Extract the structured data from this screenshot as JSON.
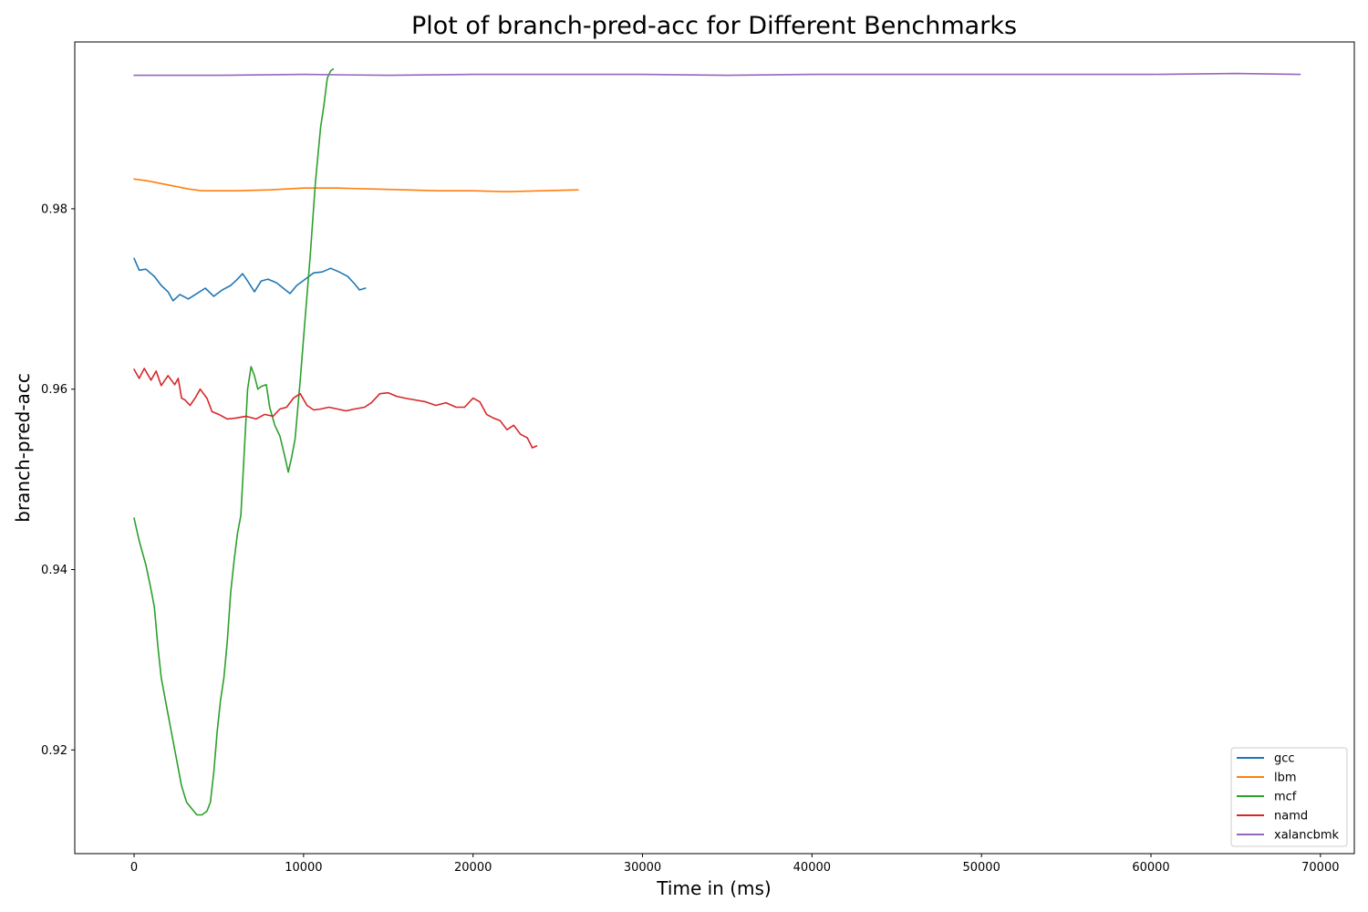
{
  "chart_data": {
    "type": "line",
    "title": "Plot of branch-pred-acc for Different Benchmarks",
    "xlabel": "Time in (ms)",
    "ylabel": "branch-pred-acc",
    "xlim": [
      -3500,
      72000
    ],
    "ylim": [
      0.9085,
      0.9985
    ],
    "x_ticks": [
      0,
      10000,
      20000,
      30000,
      40000,
      50000,
      60000,
      70000
    ],
    "x_tick_labels": [
      "0",
      "10000",
      "20000",
      "30000",
      "40000",
      "50000",
      "60000",
      "70000"
    ],
    "y_ticks": [
      0.92,
      0.94,
      0.96,
      0.98
    ],
    "y_tick_labels": [
      "0.92",
      "0.94",
      "0.96",
      "0.98"
    ],
    "grid": false,
    "legend_position": "lower-right",
    "series": [
      {
        "name": "gcc",
        "color": "#1f77b4",
        "points": [
          [
            0,
            0.9745
          ],
          [
            300,
            0.9732
          ],
          [
            700,
            0.9733
          ],
          [
            1200,
            0.9725
          ],
          [
            1600,
            0.9715
          ],
          [
            2000,
            0.9708
          ],
          [
            2300,
            0.9698
          ],
          [
            2700,
            0.9705
          ],
          [
            3200,
            0.97
          ],
          [
            3700,
            0.9706
          ],
          [
            4200,
            0.9712
          ],
          [
            4700,
            0.9703
          ],
          [
            5200,
            0.971
          ],
          [
            5700,
            0.9715
          ],
          [
            6100,
            0.9722
          ],
          [
            6400,
            0.9728
          ],
          [
            6700,
            0.972
          ],
          [
            7100,
            0.9708
          ],
          [
            7500,
            0.972
          ],
          [
            7900,
            0.9722
          ],
          [
            8400,
            0.9718
          ],
          [
            8800,
            0.9712
          ],
          [
            9200,
            0.9706
          ],
          [
            9600,
            0.9715
          ],
          [
            10100,
            0.9722
          ],
          [
            10600,
            0.9729
          ],
          [
            11100,
            0.973
          ],
          [
            11600,
            0.9734
          ],
          [
            12100,
            0.973
          ],
          [
            12600,
            0.9725
          ],
          [
            13000,
            0.9717
          ],
          [
            13300,
            0.971
          ],
          [
            13650,
            0.9712
          ]
        ]
      },
      {
        "name": "lbm",
        "color": "#ff7f0e",
        "points": [
          [
            0,
            0.9833
          ],
          [
            800,
            0.9831
          ],
          [
            1600,
            0.9828
          ],
          [
            2400,
            0.9825
          ],
          [
            3200,
            0.9822
          ],
          [
            4000,
            0.982
          ],
          [
            6000,
            0.982
          ],
          [
            8000,
            0.9821
          ],
          [
            10000,
            0.9823
          ],
          [
            12000,
            0.9823
          ],
          [
            14000,
            0.9822
          ],
          [
            16000,
            0.9821
          ],
          [
            18000,
            0.982
          ],
          [
            20000,
            0.982
          ],
          [
            22000,
            0.9819
          ],
          [
            24000,
            0.982
          ],
          [
            26200,
            0.9821
          ]
        ]
      },
      {
        "name": "mcf",
        "color": "#2ca02c",
        "points": [
          [
            0,
            0.9457
          ],
          [
            300,
            0.9432
          ],
          [
            700,
            0.9405
          ],
          [
            1000,
            0.9378
          ],
          [
            1200,
            0.9358
          ],
          [
            1400,
            0.9315
          ],
          [
            1600,
            0.928
          ],
          [
            1900,
            0.925
          ],
          [
            2200,
            0.922
          ],
          [
            2500,
            0.919
          ],
          [
            2800,
            0.916
          ],
          [
            3100,
            0.9142
          ],
          [
            3400,
            0.9135
          ],
          [
            3700,
            0.9128
          ],
          [
            4000,
            0.9128
          ],
          [
            4300,
            0.9132
          ],
          [
            4500,
            0.9142
          ],
          [
            4700,
            0.9175
          ],
          [
            4900,
            0.922
          ],
          [
            5100,
            0.9255
          ],
          [
            5300,
            0.928
          ],
          [
            5500,
            0.932
          ],
          [
            5700,
            0.9375
          ],
          [
            5900,
            0.941
          ],
          [
            6100,
            0.944
          ],
          [
            6300,
            0.946
          ],
          [
            6500,
            0.953
          ],
          [
            6700,
            0.96
          ],
          [
            6900,
            0.9625
          ],
          [
            7100,
            0.9615
          ],
          [
            7300,
            0.96
          ],
          [
            7500,
            0.9603
          ],
          [
            7800,
            0.9605
          ],
          [
            8000,
            0.958
          ],
          [
            8300,
            0.956
          ],
          [
            8600,
            0.9548
          ],
          [
            8900,
            0.9525
          ],
          [
            9100,
            0.9508
          ],
          [
            9300,
            0.9525
          ],
          [
            9500,
            0.9545
          ],
          [
            9800,
            0.961
          ],
          [
            10100,
            0.968
          ],
          [
            10400,
            0.975
          ],
          [
            10700,
            0.983
          ],
          [
            11000,
            0.989
          ],
          [
            11200,
            0.9915
          ],
          [
            11400,
            0.9945
          ],
          [
            11600,
            0.9953
          ],
          [
            11750,
            0.9955
          ]
        ]
      },
      {
        "name": "namd",
        "color": "#d62728",
        "points": [
          [
            0,
            0.9622
          ],
          [
            300,
            0.9612
          ],
          [
            600,
            0.9623
          ],
          [
            1000,
            0.961
          ],
          [
            1300,
            0.962
          ],
          [
            1600,
            0.9604
          ],
          [
            2000,
            0.9615
          ],
          [
            2400,
            0.9605
          ],
          [
            2600,
            0.9612
          ],
          [
            2800,
            0.959
          ],
          [
            3000,
            0.9588
          ],
          [
            3300,
            0.9582
          ],
          [
            3600,
            0.959
          ],
          [
            3900,
            0.96
          ],
          [
            4300,
            0.959
          ],
          [
            4600,
            0.9575
          ],
          [
            5000,
            0.9572
          ],
          [
            5500,
            0.9567
          ],
          [
            6000,
            0.9568
          ],
          [
            6600,
            0.957
          ],
          [
            7200,
            0.9567
          ],
          [
            7700,
            0.9572
          ],
          [
            8200,
            0.957
          ],
          [
            8600,
            0.9578
          ],
          [
            9000,
            0.958
          ],
          [
            9400,
            0.959
          ],
          [
            9800,
            0.9595
          ],
          [
            10200,
            0.9582
          ],
          [
            10600,
            0.9577
          ],
          [
            11000,
            0.9578
          ],
          [
            11500,
            0.958
          ],
          [
            12000,
            0.9578
          ],
          [
            12500,
            0.9576
          ],
          [
            13000,
            0.9578
          ],
          [
            13600,
            0.958
          ],
          [
            14000,
            0.9585
          ],
          [
            14500,
            0.9595
          ],
          [
            15000,
            0.9596
          ],
          [
            15500,
            0.9592
          ],
          [
            16000,
            0.959
          ],
          [
            16600,
            0.9588
          ],
          [
            17200,
            0.9586
          ],
          [
            17800,
            0.9582
          ],
          [
            18400,
            0.9585
          ],
          [
            19000,
            0.958
          ],
          [
            19500,
            0.958
          ],
          [
            20000,
            0.959
          ],
          [
            20400,
            0.9586
          ],
          [
            20800,
            0.9572
          ],
          [
            21200,
            0.9568
          ],
          [
            21600,
            0.9565
          ],
          [
            22000,
            0.9555
          ],
          [
            22400,
            0.956
          ],
          [
            22800,
            0.955
          ],
          [
            23200,
            0.9546
          ],
          [
            23500,
            0.9535
          ],
          [
            23750,
            0.9537
          ]
        ]
      },
      {
        "name": "xalancbmk",
        "color": "#9467bd",
        "points": [
          [
            0,
            0.9948
          ],
          [
            5000,
            0.9948
          ],
          [
            10000,
            0.9949
          ],
          [
            15000,
            0.9948
          ],
          [
            20000,
            0.9949
          ],
          [
            25000,
            0.9949
          ],
          [
            30000,
            0.9949
          ],
          [
            35000,
            0.9948
          ],
          [
            40000,
            0.9949
          ],
          [
            45000,
            0.9949
          ],
          [
            50000,
            0.9949
          ],
          [
            55000,
            0.9949
          ],
          [
            60000,
            0.9949
          ],
          [
            65000,
            0.995
          ],
          [
            68800,
            0.9949
          ]
        ]
      }
    ]
  }
}
